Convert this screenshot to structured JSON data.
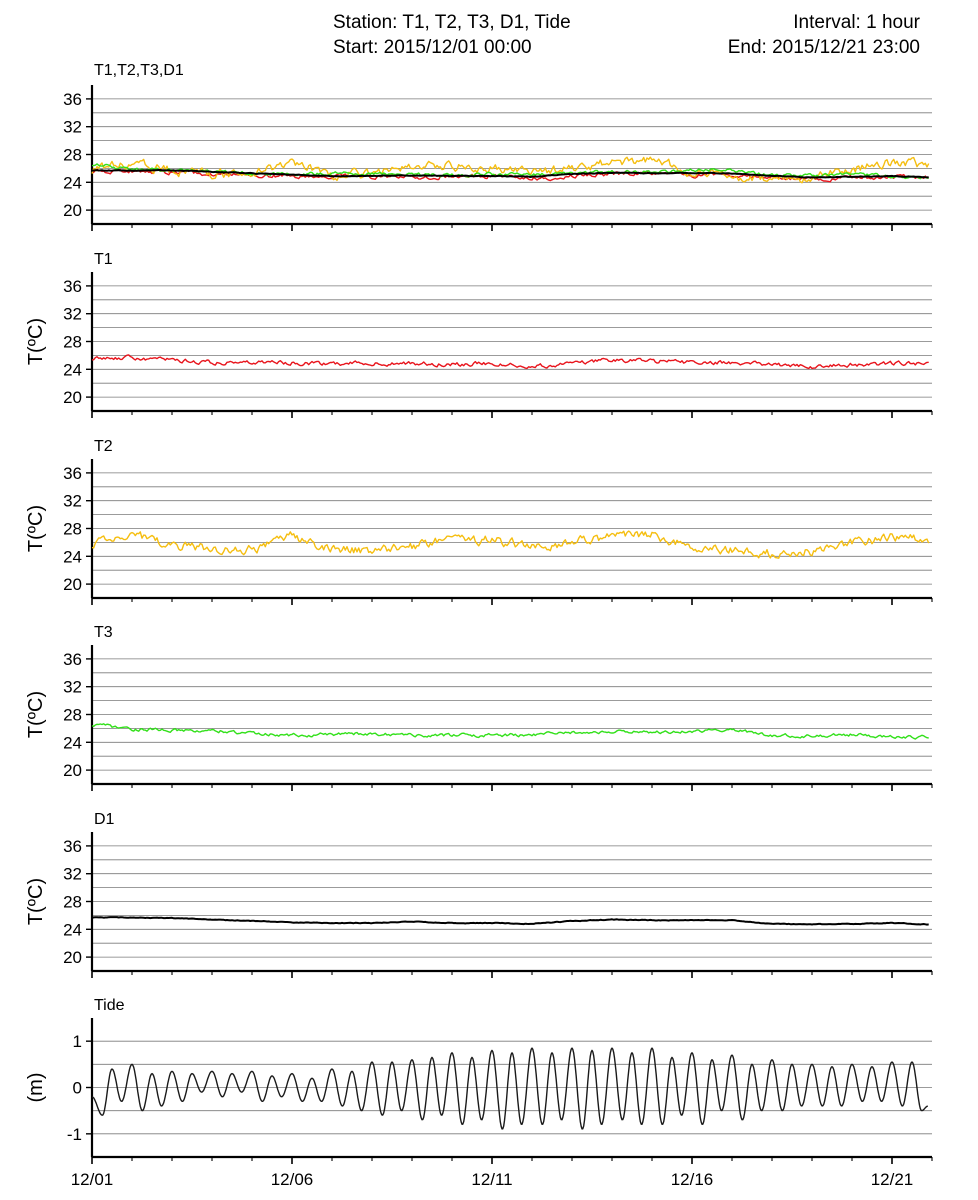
{
  "header": {
    "station_line": "Station:  T1, T2, T3, D1, Tide",
    "start_line": "Start: 2015/12/01 00:00",
    "interval_line": "Interval: 1 hour",
    "end_line": "End: 2015/12/21 23:00"
  },
  "colors": {
    "T1": "#e8141c",
    "T2": "#f5be10",
    "T3": "#32e01a",
    "D1": "#000000",
    "Tide": "#1a1a1a",
    "grid": "#7a7a7a"
  },
  "chart_data": [
    {
      "type": "line",
      "title": "T1,T2,T3,D1",
      "ylabel": "",
      "xlim": [
        0,
        21
      ],
      "ylim": [
        18,
        38
      ],
      "yticks": [
        20,
        24,
        28,
        32,
        36
      ],
      "x_tick_labels": [
        "12/01",
        "12/06",
        "12/11",
        "12/16",
        "12/21"
      ],
      "series": [
        {
          "name": "T1",
          "color": "#e8141c",
          "x": [
            0,
            1,
            2,
            3,
            4,
            5,
            6,
            7,
            8,
            9,
            10,
            11,
            12,
            13,
            14,
            15,
            16,
            17,
            18,
            19,
            20,
            21
          ],
          "values": [
            25.6,
            25.6,
            25.4,
            25.2,
            25.0,
            24.9,
            24.9,
            24.8,
            24.8,
            24.8,
            24.9,
            24.5,
            24.9,
            25.2,
            25.2,
            25.0,
            25.0,
            24.7,
            24.4,
            24.7,
            24.8,
            24.8
          ]
        },
        {
          "name": "T2",
          "color": "#f5be10",
          "x": [
            0,
            1,
            2,
            3,
            4,
            5,
            6,
            7,
            8,
            9,
            10,
            11,
            12,
            13,
            14,
            15,
            16,
            17,
            18,
            19,
            20,
            21
          ],
          "values": [
            25.8,
            27.0,
            25.6,
            25.2,
            25.0,
            27.0,
            25.0,
            25.2,
            26.5,
            26.3,
            26.0,
            25.4,
            26.0,
            26.8,
            27.2,
            25.6,
            25.0,
            24.4,
            24.8,
            25.8,
            26.8,
            26.4
          ]
        },
        {
          "name": "T3",
          "color": "#32e01a",
          "x": [
            0,
            1,
            2,
            3,
            4,
            5,
            6,
            7,
            8,
            9,
            10,
            11,
            12,
            13,
            14,
            15,
            16,
            17,
            18,
            19,
            20,
            21
          ],
          "values": [
            26.6,
            25.9,
            25.7,
            25.7,
            25.3,
            25.1,
            25.3,
            25.2,
            25.1,
            25.0,
            25.2,
            25.2,
            25.4,
            25.5,
            25.5,
            25.7,
            25.8,
            25.0,
            25.0,
            25.2,
            24.8,
            24.7
          ]
        },
        {
          "name": "D1",
          "color": "#000000",
          "x": [
            0,
            1,
            2,
            3,
            4,
            5,
            6,
            7,
            8,
            9,
            10,
            11,
            12,
            13,
            14,
            15,
            16,
            17,
            18,
            19,
            20,
            21
          ],
          "values": [
            25.7,
            25.7,
            25.7,
            25.5,
            25.3,
            25.1,
            24.9,
            24.9,
            25.0,
            24.9,
            24.9,
            24.8,
            25.2,
            25.4,
            25.3,
            25.3,
            25.3,
            24.9,
            24.7,
            24.8,
            24.9,
            24.7
          ]
        }
      ]
    },
    {
      "type": "line",
      "title": "T1",
      "ylabel": "T(ºC)",
      "xlim": [
        0,
        21
      ],
      "ylim": [
        18,
        38
      ],
      "yticks": [
        20,
        24,
        28,
        32,
        36
      ],
      "x_tick_labels": [
        "12/01",
        "12/06",
        "12/11",
        "12/16",
        "12/21"
      ],
      "series": [
        {
          "name": "T1",
          "color": "#e8141c",
          "x": [
            0,
            1,
            2,
            3,
            4,
            5,
            6,
            7,
            8,
            9,
            10,
            11,
            12,
            13,
            14,
            15,
            16,
            17,
            18,
            19,
            20,
            21
          ],
          "values": [
            25.6,
            25.7,
            25.4,
            25.0,
            25.0,
            24.9,
            24.9,
            24.8,
            24.8,
            24.7,
            24.9,
            24.4,
            24.9,
            25.3,
            25.2,
            25.0,
            25.0,
            24.7,
            24.4,
            24.7,
            24.8,
            24.8
          ]
        }
      ]
    },
    {
      "type": "line",
      "title": "T2",
      "ylabel": "T(ºC)",
      "xlim": [
        0,
        21
      ],
      "ylim": [
        18,
        38
      ],
      "yticks": [
        20,
        24,
        28,
        32,
        36
      ],
      "x_tick_labels": [
        "12/01",
        "12/06",
        "12/11",
        "12/16",
        "12/21"
      ],
      "series": [
        {
          "name": "T2",
          "color": "#f5be10",
          "x": [
            0,
            1,
            2,
            3,
            4,
            5,
            6,
            7,
            8,
            9,
            10,
            11,
            12,
            13,
            14,
            15,
            16,
            17,
            18,
            19,
            20,
            21
          ],
          "values": [
            25.8,
            27.0,
            25.6,
            25.0,
            24.9,
            26.8,
            25.0,
            24.8,
            25.4,
            26.5,
            26.3,
            25.4,
            26.0,
            26.8,
            27.2,
            25.4,
            25.0,
            24.4,
            24.8,
            25.8,
            26.8,
            26.4
          ]
        }
      ]
    },
    {
      "type": "line",
      "title": "T3",
      "ylabel": "T(ºC)",
      "xlim": [
        0,
        21
      ],
      "ylim": [
        18,
        38
      ],
      "yticks": [
        20,
        24,
        28,
        32,
        36
      ],
      "x_tick_labels": [
        "12/01",
        "12/06",
        "12/11",
        "12/16",
        "12/21"
      ],
      "series": [
        {
          "name": "T3",
          "color": "#32e01a",
          "x": [
            0,
            1,
            2,
            3,
            4,
            5,
            6,
            7,
            8,
            9,
            10,
            11,
            12,
            13,
            14,
            15,
            16,
            17,
            18,
            19,
            20,
            21
          ],
          "values": [
            26.6,
            25.9,
            25.7,
            25.7,
            25.3,
            25.0,
            25.2,
            25.2,
            25.1,
            25.0,
            25.0,
            25.1,
            25.4,
            25.5,
            25.5,
            25.6,
            25.8,
            25.0,
            24.9,
            25.1,
            24.8,
            24.7
          ]
        }
      ]
    },
    {
      "type": "line",
      "title": "D1",
      "ylabel": "T(ºC)",
      "xlim": [
        0,
        21
      ],
      "ylim": [
        18,
        38
      ],
      "yticks": [
        20,
        24,
        28,
        32,
        36
      ],
      "x_tick_labels": [
        "12/01",
        "12/06",
        "12/11",
        "12/16",
        "12/21"
      ],
      "series": [
        {
          "name": "D1",
          "color": "#000000",
          "x": [
            0,
            1,
            2,
            3,
            4,
            5,
            6,
            7,
            8,
            9,
            10,
            11,
            12,
            13,
            14,
            15,
            16,
            17,
            18,
            19,
            20,
            21
          ],
          "values": [
            25.7,
            25.7,
            25.6,
            25.4,
            25.2,
            25.0,
            24.9,
            24.9,
            25.1,
            24.9,
            24.9,
            24.8,
            25.2,
            25.4,
            25.3,
            25.3,
            25.3,
            24.8,
            24.7,
            24.8,
            24.9,
            24.7
          ]
        }
      ]
    },
    {
      "type": "line",
      "title": "Tide",
      "ylabel": "(m)",
      "xlim": [
        0,
        21
      ],
      "ylim": [
        -1.5,
        1.5
      ],
      "yticks": [
        -1,
        0,
        1
      ],
      "x_tick_labels": [
        "12/01",
        "12/06",
        "12/11",
        "12/16",
        "12/21"
      ],
      "series": [
        {
          "name": "Tide",
          "color": "#1a1a1a",
          "x": [
            0,
            0.26,
            0.5,
            0.74,
            1.0,
            1.26,
            1.5,
            1.74,
            2.0,
            2.26,
            2.5,
            2.74,
            3.0,
            3.26,
            3.5,
            3.74,
            4.0,
            4.26,
            4.5,
            4.74,
            5.0,
            5.26,
            5.5,
            5.74,
            6.0,
            6.26,
            6.5,
            6.74,
            7.0,
            7.26,
            7.5,
            7.74,
            8.0,
            8.26,
            8.5,
            8.74,
            9.0,
            9.26,
            9.5,
            9.74,
            10.0,
            10.26,
            10.5,
            10.74,
            11.0,
            11.26,
            11.5,
            11.74,
            12.0,
            12.26,
            12.5,
            12.74,
            13.0,
            13.26,
            13.5,
            13.74,
            14.0,
            14.26,
            14.5,
            14.74,
            15.0,
            15.26,
            15.5,
            15.74,
            16.0,
            16.26,
            16.5,
            16.74,
            17.0,
            17.26,
            17.5,
            17.74,
            18.0,
            18.26,
            18.5,
            18.74,
            19.0,
            19.26,
            19.5,
            19.74,
            20.0,
            20.26,
            20.5,
            20.74,
            20.9
          ],
          "values": [
            -0.2,
            -0.6,
            0.4,
            -0.3,
            0.5,
            -0.5,
            0.3,
            -0.4,
            0.35,
            -0.3,
            0.3,
            -0.1,
            0.35,
            -0.2,
            0.3,
            -0.1,
            0.35,
            -0.3,
            0.25,
            -0.2,
            0.3,
            -0.3,
            0.2,
            -0.3,
            0.4,
            -0.4,
            0.35,
            -0.5,
            0.55,
            -0.6,
            0.55,
            -0.5,
            0.6,
            -0.7,
            0.65,
            -0.6,
            0.75,
            -0.8,
            0.65,
            -0.7,
            0.8,
            -0.9,
            0.75,
            -0.8,
            0.85,
            -0.8,
            0.75,
            -0.7,
            0.85,
            -0.9,
            0.8,
            -0.8,
            0.85,
            -0.7,
            0.75,
            -0.8,
            0.85,
            -0.8,
            0.65,
            -0.6,
            0.75,
            -0.8,
            0.6,
            -0.5,
            0.7,
            -0.7,
            0.5,
            -0.5,
            0.6,
            -0.5,
            0.5,
            -0.4,
            0.5,
            -0.4,
            0.45,
            -0.4,
            0.5,
            -0.3,
            0.45,
            -0.3,
            0.55,
            -0.4,
            0.55,
            -0.5,
            -0.4
          ]
        }
      ]
    }
  ]
}
